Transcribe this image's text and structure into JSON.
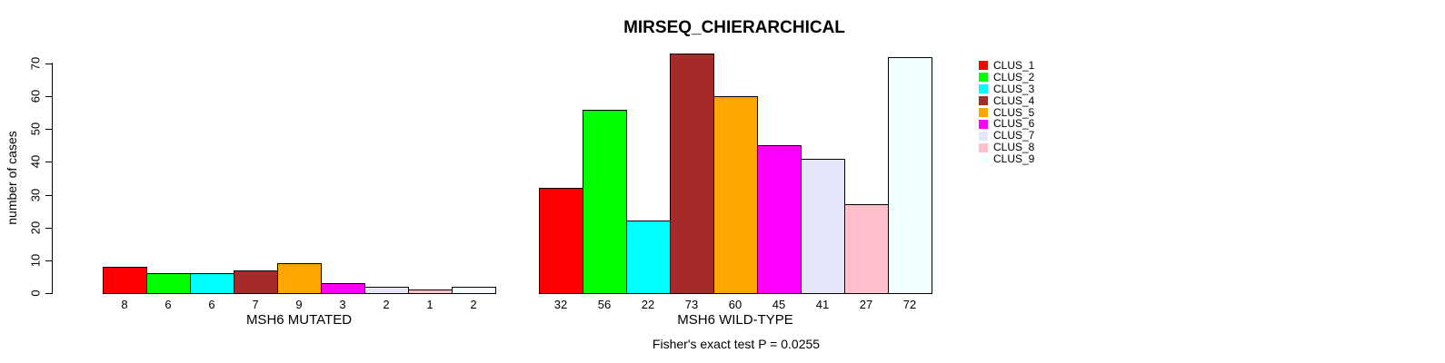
{
  "chart_data": {
    "type": "bar",
    "title": "MIRSEQ_CHIERARCHICAL",
    "ylabel": "number of cases",
    "xlabel": "",
    "ylim": [
      0,
      70
    ],
    "yticks": [
      0,
      10,
      20,
      30,
      40,
      50,
      60,
      70
    ],
    "grid": false,
    "legend_position": "right",
    "series_labels": [
      "CLUS_1",
      "CLUS_2",
      "CLUS_3",
      "CLUS_4",
      "CLUS_5",
      "CLUS_6",
      "CLUS_7",
      "CLUS_8",
      "CLUS_9"
    ],
    "bar_colors": [
      "#FF0000",
      "#00FF00",
      "#00FFFF",
      "#A52A2A",
      "#FFA500",
      "#FF00FF",
      "#E6E6FA",
      "#FFC0CB",
      "#F0FFFF"
    ],
    "groups": [
      {
        "label": "MSH6 MUTATED",
        "values": [
          8,
          6,
          6,
          7,
          9,
          3,
          2,
          1,
          2
        ]
      },
      {
        "label": "MSH6 WILD-TYPE",
        "values": [
          32,
          56,
          22,
          73,
          60,
          45,
          41,
          27,
          72
        ]
      }
    ],
    "annotation": "Fisher's exact test P = 0.0255"
  }
}
